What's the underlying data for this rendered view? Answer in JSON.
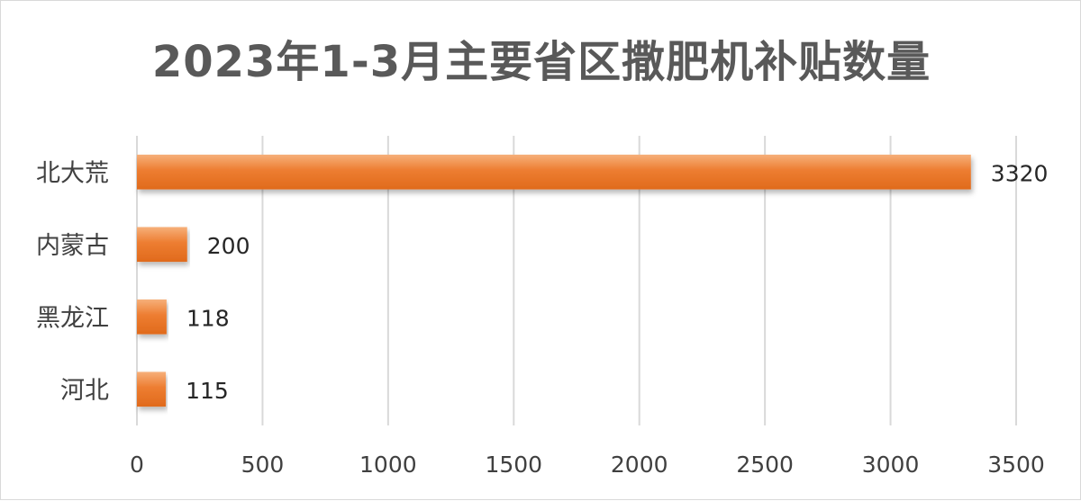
{
  "chart_data": {
    "type": "bar",
    "orientation": "horizontal",
    "title": "2023年1-3月主要省区撒肥机补贴数量",
    "categories": [
      "北大荒",
      "内蒙古",
      "黑龙江",
      "河北"
    ],
    "values": [
      3320,
      200,
      118,
      115
    ],
    "data_labels": [
      "3320",
      "200",
      "118",
      "115"
    ],
    "xlim": [
      0,
      3500
    ],
    "x_ticks": [
      0,
      500,
      1000,
      1500,
      2000,
      2500,
      3000,
      3500
    ],
    "x_tick_labels": [
      "0",
      "500",
      "1000",
      "1500",
      "2000",
      "2500",
      "3000",
      "3500"
    ],
    "grid": true,
    "legend": "none",
    "bar_color": "#ed7d31",
    "bar_color_light": "#f4a46a"
  }
}
